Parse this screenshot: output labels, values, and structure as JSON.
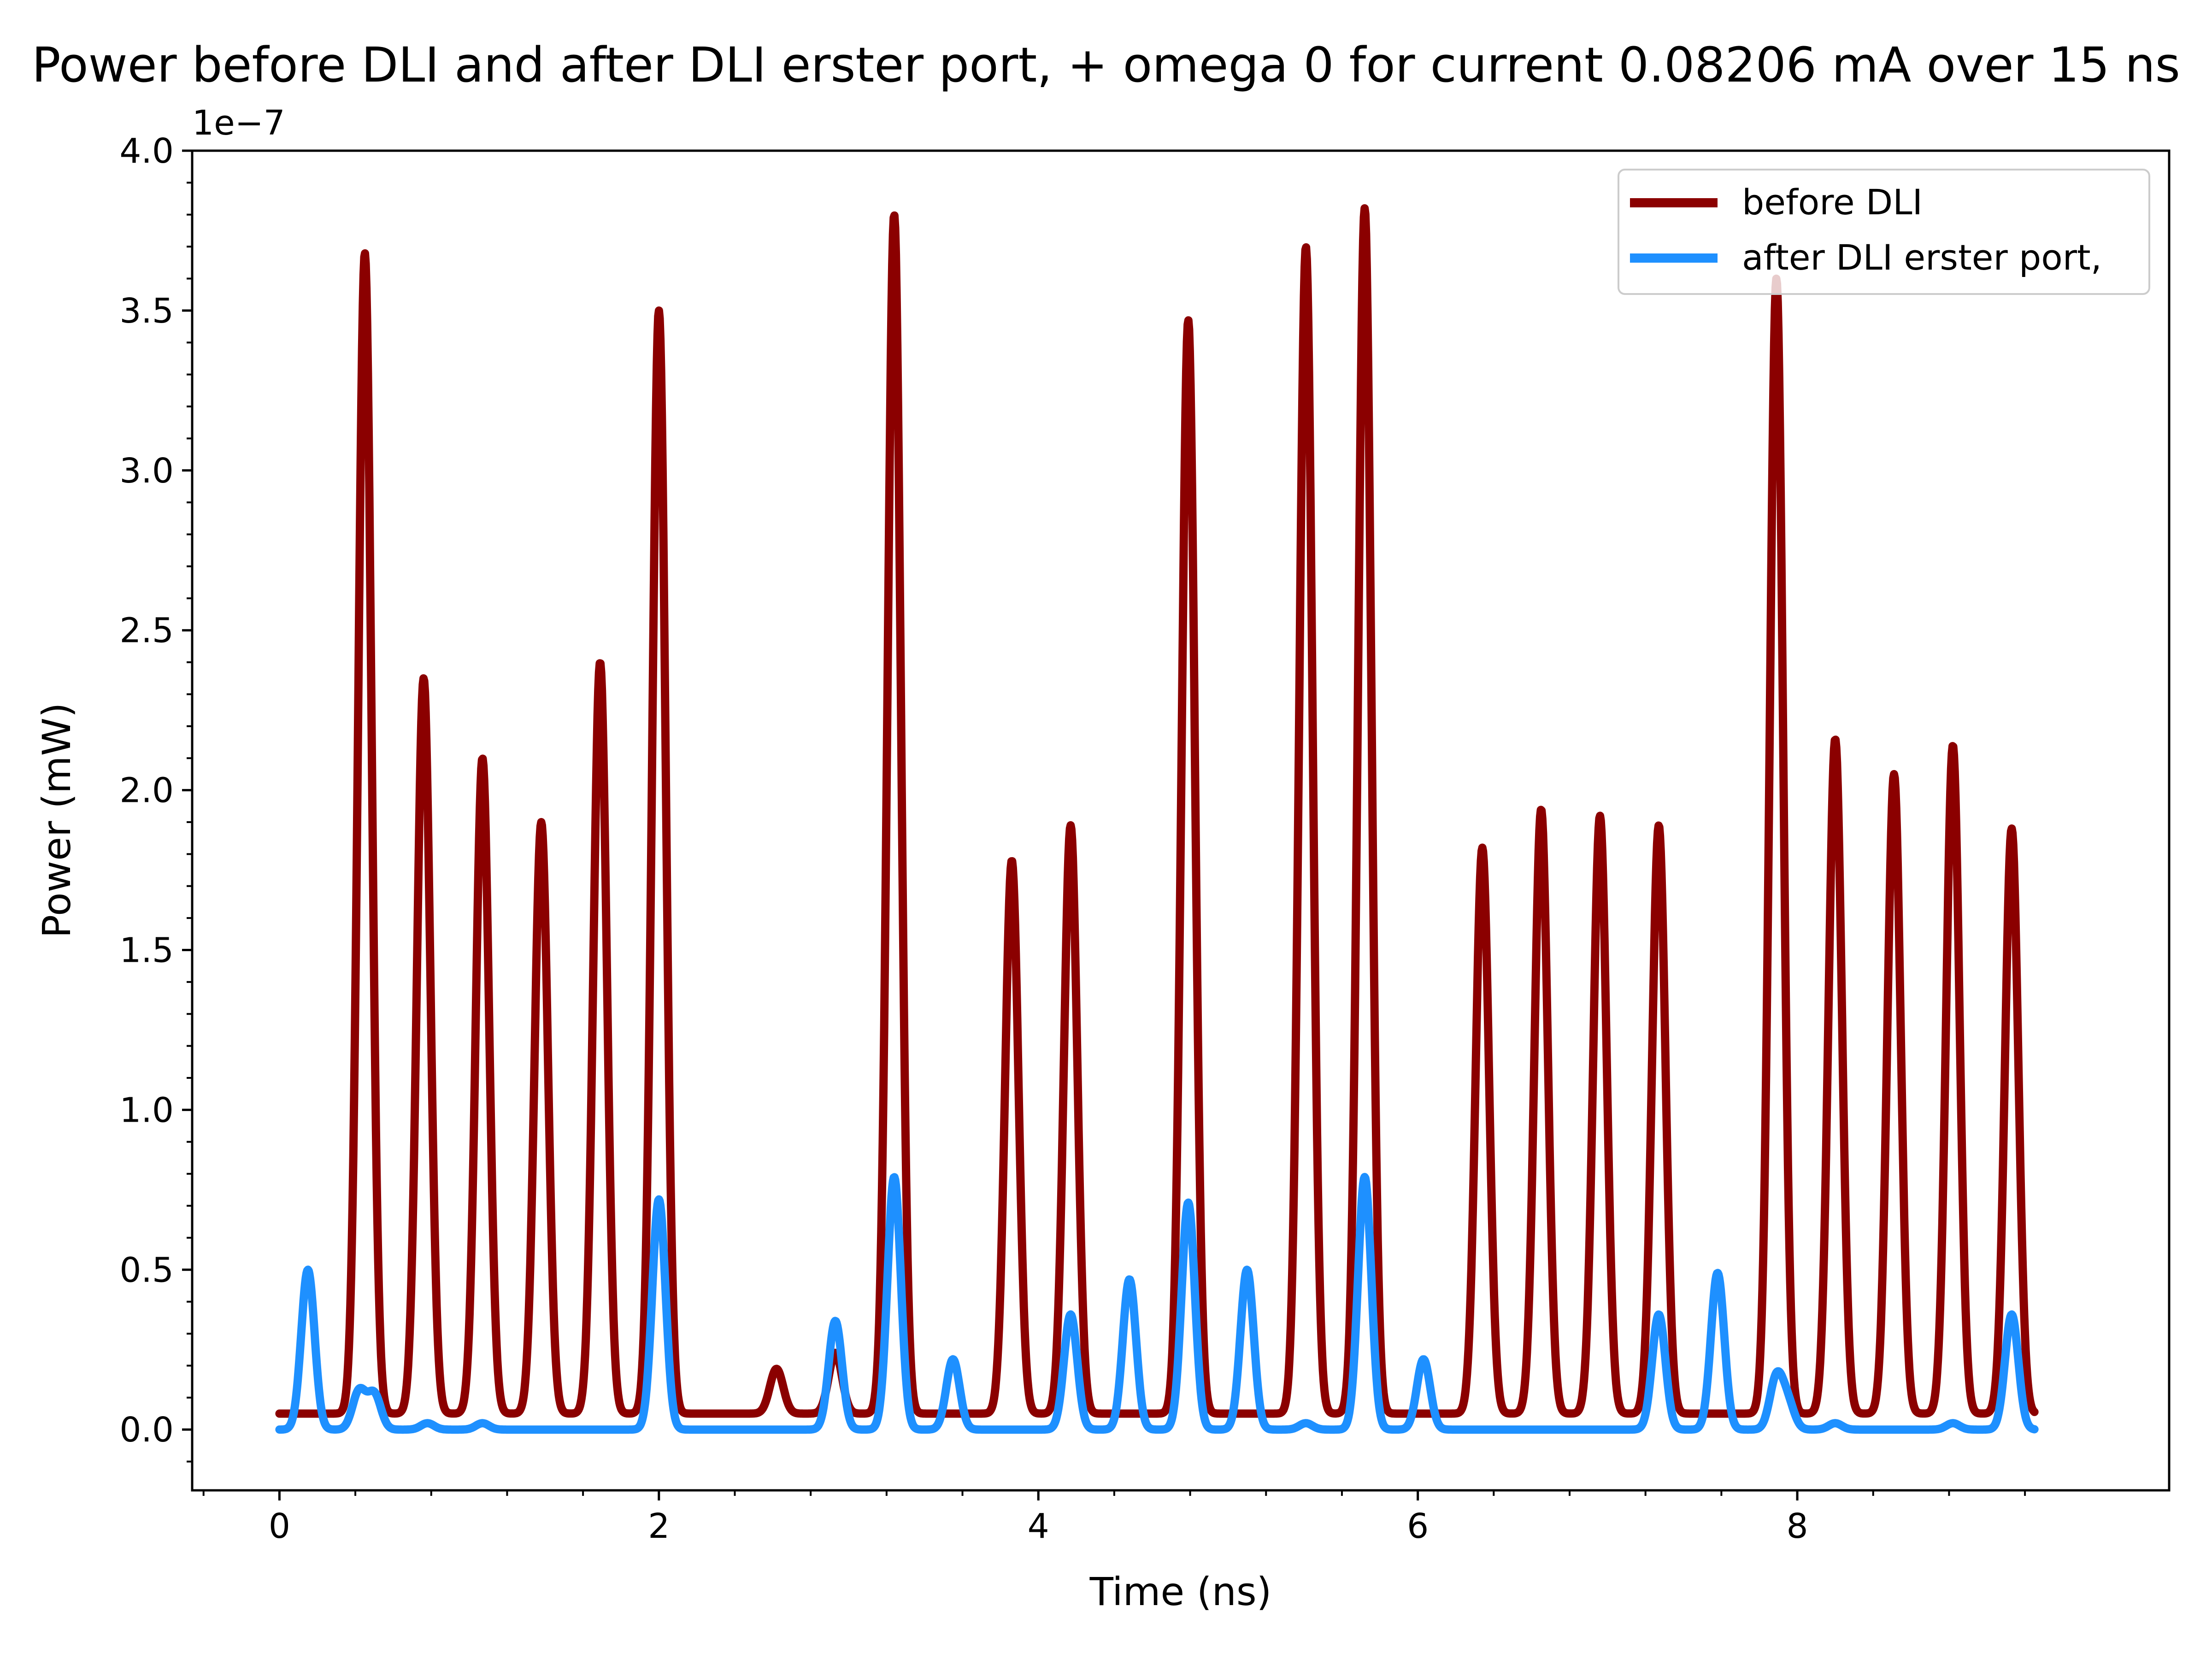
{
  "chart_data": {
    "type": "line",
    "title": "Power before DLI and after DLI erster port, + omega 0 for current 0.08206 mA over 15 ns",
    "xlabel": "Time (ns)",
    "ylabel": "Power (mW)",
    "y_offset_text": "1e−7",
    "xlim": [
      -0.46,
      9.96
    ],
    "ylim": [
      -0.19,
      4.0
    ],
    "x_ticks": [
      0,
      2,
      4,
      6,
      8
    ],
    "x_tick_labels": [
      "0",
      "2",
      "4",
      "6",
      "8"
    ],
    "y_ticks": [
      0.0,
      0.5,
      1.0,
      1.5,
      2.0,
      2.5,
      3.0,
      3.5,
      4.0
    ],
    "y_tick_labels": [
      "0.0",
      "0.5",
      "1.0",
      "1.5",
      "2.0",
      "2.5",
      "3.0",
      "3.5",
      "4.0"
    ],
    "grid": false,
    "legend_position": "top-right",
    "x_range": [
      0,
      9.25
    ],
    "series": [
      {
        "name": "before DLI",
        "color": "#8b0000",
        "baseline": 0.05,
        "peaks": [
          {
            "x": 0.45,
            "y": 3.68
          },
          {
            "x": 0.76,
            "y": 2.35
          },
          {
            "x": 1.07,
            "y": 2.1
          },
          {
            "x": 1.38,
            "y": 1.9
          },
          {
            "x": 1.69,
            "y": 2.4
          },
          {
            "x": 2.0,
            "y": 3.5
          },
          {
            "x": 2.62,
            "y": 0.19
          },
          {
            "x": 2.93,
            "y": 0.24
          },
          {
            "x": 3.24,
            "y": 3.8
          },
          {
            "x": 3.86,
            "y": 1.78
          },
          {
            "x": 4.17,
            "y": 1.89
          },
          {
            "x": 4.79,
            "y": 3.47
          },
          {
            "x": 5.41,
            "y": 3.7
          },
          {
            "x": 5.72,
            "y": 3.82
          },
          {
            "x": 6.34,
            "y": 1.82
          },
          {
            "x": 6.65,
            "y": 1.94
          },
          {
            "x": 6.96,
            "y": 1.92
          },
          {
            "x": 7.27,
            "y": 1.89
          },
          {
            "x": 7.89,
            "y": 3.6
          },
          {
            "x": 8.2,
            "y": 2.16
          },
          {
            "x": 8.51,
            "y": 2.05
          },
          {
            "x": 8.82,
            "y": 2.14
          },
          {
            "x": 9.13,
            "y": 1.88
          }
        ]
      },
      {
        "name": "after DLI erster port,",
        "color": "#1e90ff",
        "baseline": 0.0,
        "peaks": [
          {
            "x": 0.15,
            "y": 0.5
          },
          {
            "x": 0.42,
            "y": 0.12
          },
          {
            "x": 0.5,
            "y": 0.11
          },
          {
            "x": 0.78,
            "y": 0.02
          },
          {
            "x": 1.07,
            "y": 0.02
          },
          {
            "x": 2.0,
            "y": 0.72
          },
          {
            "x": 2.93,
            "y": 0.34
          },
          {
            "x": 3.24,
            "y": 0.79
          },
          {
            "x": 3.55,
            "y": 0.22
          },
          {
            "x": 4.17,
            "y": 0.36
          },
          {
            "x": 4.48,
            "y": 0.47
          },
          {
            "x": 4.79,
            "y": 0.71
          },
          {
            "x": 5.1,
            "y": 0.5
          },
          {
            "x": 5.41,
            "y": 0.02
          },
          {
            "x": 5.72,
            "y": 0.79
          },
          {
            "x": 6.03,
            "y": 0.22
          },
          {
            "x": 7.27,
            "y": 0.36
          },
          {
            "x": 7.58,
            "y": 0.49
          },
          {
            "x": 7.89,
            "y": 0.16
          },
          {
            "x": 7.95,
            "y": 0.08
          },
          {
            "x": 8.2,
            "y": 0.02
          },
          {
            "x": 8.82,
            "y": 0.02
          },
          {
            "x": 9.13,
            "y": 0.36
          }
        ]
      }
    ]
  }
}
